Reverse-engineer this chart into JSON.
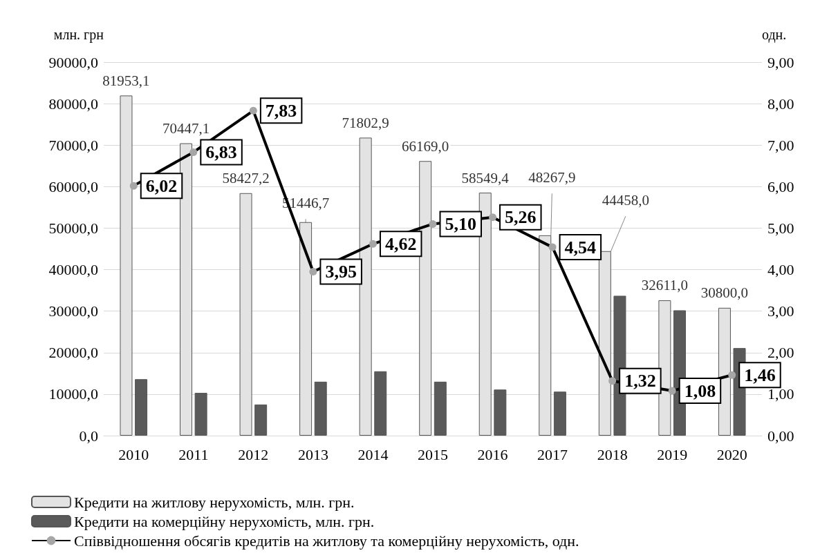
{
  "chart_data": {
    "type": "bar",
    "ylabel": "млн. грн",
    "y2label": "одн.",
    "categories": [
      "2010",
      "2011",
      "2012",
      "2013",
      "2014",
      "2015",
      "2016",
      "2017",
      "2018",
      "2019",
      "2020"
    ],
    "series": [
      {
        "name": "Кредити на житлову нерухомість, млн. грн.",
        "color": "#e3e3e3",
        "values": [
          81953.1,
          70447.1,
          58427.2,
          51446.7,
          71802.9,
          66169.0,
          58549.4,
          48267.9,
          44458.0,
          32611.0,
          30800.0
        ],
        "value_labels": [
          "81953,1",
          "70447,1",
          "58427,2",
          "51446,7",
          "71802,9",
          "66169,0",
          "58549,4",
          "48267,9",
          "44458,0",
          "32611,0",
          "30800,0"
        ]
      },
      {
        "name": "Кредити на комерційну нерухомість, млн. грн.",
        "color": "#5a5a5a",
        "values": [
          13600,
          10300,
          7500,
          13000,
          15500,
          13000,
          11100,
          10600,
          33700,
          30200,
          21100
        ]
      },
      {
        "name": "Співвідношення обсягів кредитів на житлову та комерційну нерухомість, одн.",
        "type": "line",
        "axis": "y2",
        "color": "#000000",
        "marker": "circle",
        "values": [
          6.02,
          6.83,
          7.83,
          3.95,
          4.62,
          5.1,
          5.26,
          4.54,
          1.32,
          1.08,
          1.46
        ],
        "value_labels": [
          "6,02",
          "6,83",
          "7,83",
          "3,95",
          "4,62",
          "5,10",
          "5,26",
          "4,54",
          "1,32",
          "1,08",
          "1,46"
        ]
      }
    ],
    "ylim": [
      0,
      90000
    ],
    "yticks": [
      {
        "value": 0,
        "label": "0,0"
      },
      {
        "value": 10000,
        "label": "10000,0"
      },
      {
        "value": 20000,
        "label": "20000,0"
      },
      {
        "value": 30000,
        "label": "30000,0"
      },
      {
        "value": 40000,
        "label": "40000,0"
      },
      {
        "value": 50000,
        "label": "50000,0"
      },
      {
        "value": 60000,
        "label": "60000,0"
      },
      {
        "value": 70000,
        "label": "70000,0"
      },
      {
        "value": 80000,
        "label": "80000,0"
      },
      {
        "value": 90000,
        "label": "90000,0"
      }
    ],
    "y2lim": [
      0,
      9
    ],
    "y2ticks": [
      {
        "value": 0,
        "label": "0,00"
      },
      {
        "value": 1,
        "label": "1,00"
      },
      {
        "value": 2,
        "label": "2,00"
      },
      {
        "value": 3,
        "label": "3,00"
      },
      {
        "value": 4,
        "label": "4,00"
      },
      {
        "value": 5,
        "label": "5,00"
      },
      {
        "value": 6,
        "label": "6,00"
      },
      {
        "value": 7,
        "label": "7,00"
      },
      {
        "value": 8,
        "label": "8,00"
      },
      {
        "value": 9,
        "label": "9,00"
      }
    ],
    "grid": "y",
    "legend": "bottom"
  }
}
